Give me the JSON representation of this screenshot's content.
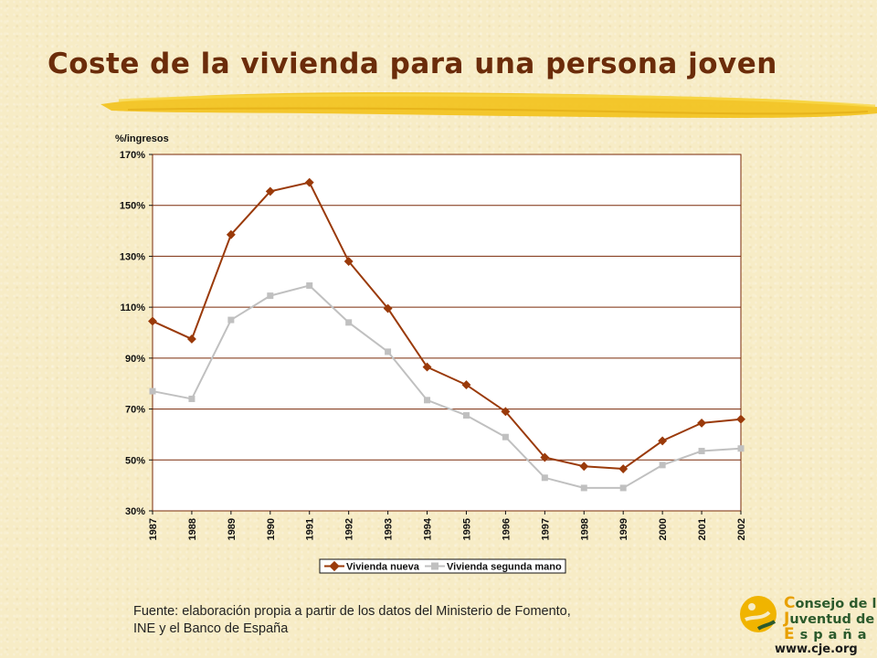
{
  "slide": {
    "title": "Coste de la vivienda para una persona joven",
    "source_line1": "Fuente: elaboración propia a partir de los datos del Ministerio de Fomento,",
    "source_line2": "INE y el Banco de España"
  },
  "logo": {
    "line1_cap": "C",
    "line1_rest": "onsejo de la",
    "line2_cap": "J",
    "line2_rest": "uventud de",
    "line3_cap": "E",
    "line3_rest": "spaña",
    "url": "www.cje.org"
  },
  "colors": {
    "accent_brush": "#f2c21a",
    "nueva": "#9a3a0a",
    "segunda": "#c0c0c0",
    "grid": "#7a2a08",
    "title": "#6b2c0a"
  },
  "chart_data": {
    "type": "line",
    "ylabel": "%/ingresos",
    "xlabel": "",
    "ylim": [
      30,
      170
    ],
    "y_ticks": [
      "170%",
      "150%",
      "130%",
      "110%",
      "90%",
      "70%",
      "50%",
      "30%"
    ],
    "y_tick_values": [
      170,
      150,
      130,
      110,
      90,
      70,
      50,
      30
    ],
    "categories": [
      "1987",
      "1988",
      "1989",
      "1990",
      "1991",
      "1992",
      "1993",
      "1994",
      "1995",
      "1996",
      "1997",
      "1998",
      "1999",
      "2000",
      "2001",
      "2002"
    ],
    "series": [
      {
        "name": "Vivienda nueva",
        "marker": "diamond",
        "values": [
          104.5,
          97.5,
          138.5,
          155.5,
          159,
          128,
          109.5,
          86.5,
          79.5,
          69,
          51,
          47.5,
          46.5,
          57.5,
          64.5,
          66
        ]
      },
      {
        "name": "Vivienda segunda mano",
        "marker": "square",
        "values": [
          77,
          74,
          105,
          114.5,
          118.5,
          104,
          92.5,
          73.5,
          67.5,
          59,
          43,
          39,
          39,
          48,
          53.5,
          54.5
        ]
      }
    ],
    "grid": true,
    "legend_position": "bottom"
  }
}
